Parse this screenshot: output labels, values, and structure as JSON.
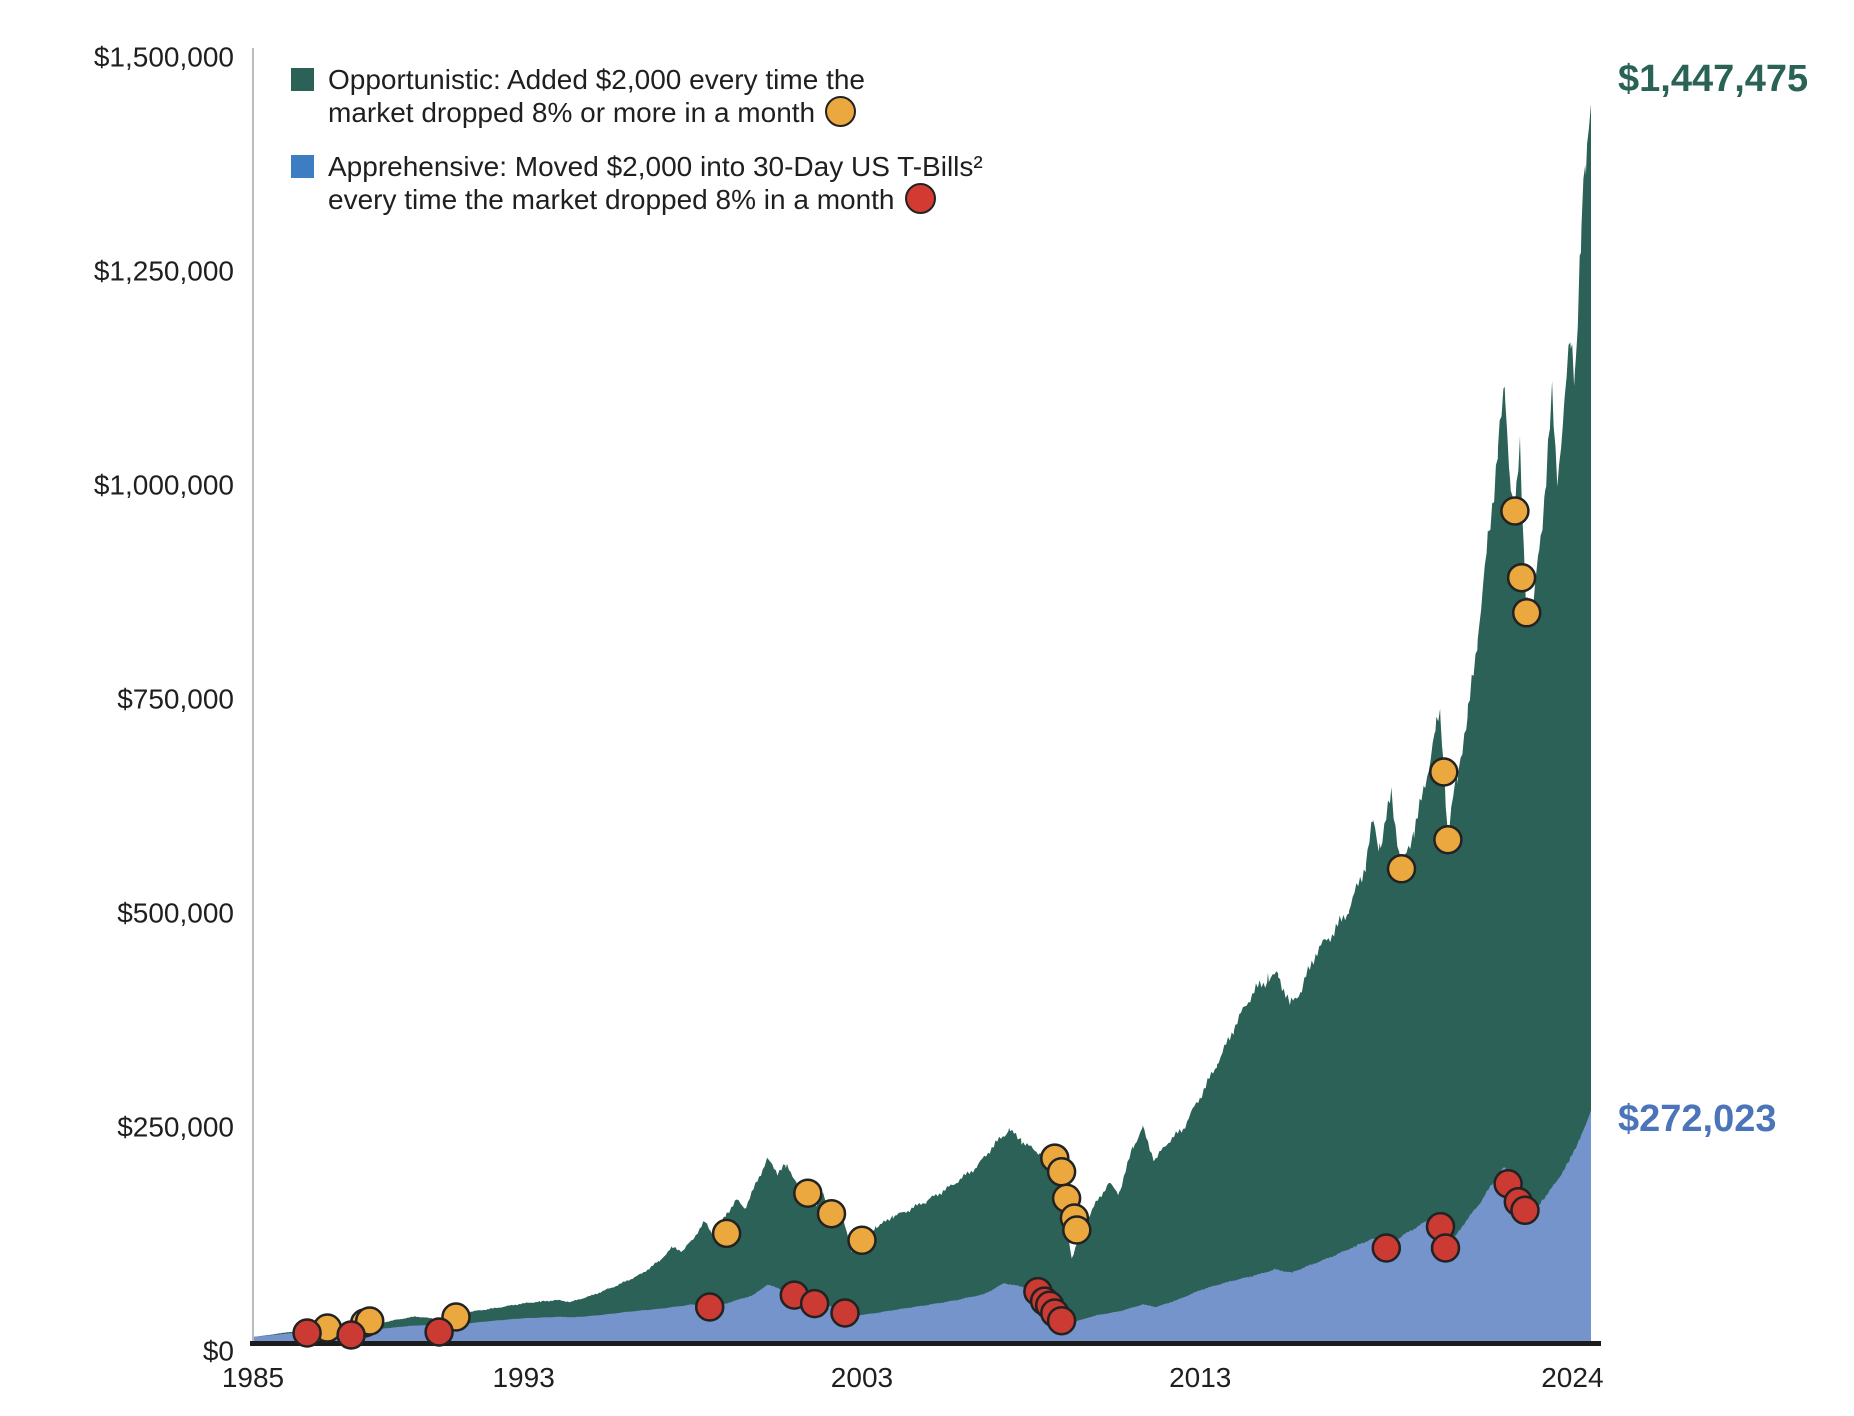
{
  "chart_data": {
    "type": "area",
    "title": "",
    "x_axis": {
      "labels": [
        "1985",
        "1993",
        "2003",
        "2013",
        "2024"
      ],
      "values": [
        1985,
        1993,
        2003,
        2013,
        2024
      ],
      "range": [
        1985,
        2024.55
      ]
    },
    "y_axis": {
      "labels": [
        "$1,500,000",
        "$1,250,000",
        "$1,000,000",
        "$750,000",
        "$500,000",
        "$250,000",
        "$0"
      ],
      "values": [
        1500000,
        1250000,
        1000000,
        750000,
        500000,
        250000,
        0
      ],
      "range": [
        0,
        1500000
      ]
    },
    "grid": "off",
    "legend_position": "top-left",
    "series": [
      {
        "name": "Opportunistic",
        "color": "#2B6156",
        "end_label": "$1,447,475",
        "end_value": 1447475,
        "label_color": "#2A6356",
        "points": [
          [
            1985.0,
            7000
          ],
          [
            1985.5,
            9500
          ],
          [
            1986.0,
            12500
          ],
          [
            1986.5,
            14500
          ],
          [
            1987.0,
            16500
          ],
          [
            1987.4,
            19000
          ],
          [
            1987.75,
            25000
          ],
          [
            1987.95,
            16500
          ],
          [
            1988.3,
            20000
          ],
          [
            1988.8,
            23500
          ],
          [
            1989.3,
            27500
          ],
          [
            1989.8,
            31000
          ],
          [
            1990.2,
            29500
          ],
          [
            1990.55,
            26500
          ],
          [
            1991.0,
            33000
          ],
          [
            1991.5,
            37000
          ],
          [
            1992.0,
            40000
          ],
          [
            1992.5,
            43000
          ],
          [
            1993.0,
            46000
          ],
          [
            1993.5,
            48500
          ],
          [
            1994.0,
            50500
          ],
          [
            1994.4,
            48000
          ],
          [
            1995.0,
            55000
          ],
          [
            1995.5,
            63000
          ],
          [
            1996.0,
            72000
          ],
          [
            1996.5,
            81000
          ],
          [
            1997.0,
            95000
          ],
          [
            1997.4,
            112000
          ],
          [
            1997.7,
            108000
          ],
          [
            1998.0,
            122000
          ],
          [
            1998.35,
            142000
          ],
          [
            1998.6,
            126000
          ],
          [
            1999.0,
            150000
          ],
          [
            1999.3,
            167000
          ],
          [
            1999.55,
            158000
          ],
          [
            1999.9,
            190000
          ],
          [
            2000.2,
            215000
          ],
          [
            2000.5,
            199000
          ],
          [
            2000.75,
            207000
          ],
          [
            2001.1,
            186000
          ],
          [
            2001.4,
            172000
          ],
          [
            2001.65,
            160000
          ],
          [
            2001.85,
            176000
          ],
          [
            2002.1,
            150000
          ],
          [
            2002.35,
            161000
          ],
          [
            2002.7,
            105000
          ],
          [
            2003.0,
            118000
          ],
          [
            2003.4,
            135000
          ],
          [
            2003.9,
            148000
          ],
          [
            2004.4,
            155000
          ],
          [
            2004.9,
            165000
          ],
          [
            2005.4,
            178000
          ],
          [
            2005.9,
            192000
          ],
          [
            2006.4,
            205000
          ],
          [
            2006.9,
            230000
          ],
          [
            2007.35,
            250000
          ],
          [
            2007.7,
            238000
          ],
          [
            2008.0,
            228000
          ],
          [
            2008.4,
            218000
          ],
          [
            2008.7,
            205000
          ],
          [
            2008.95,
            168000
          ],
          [
            2009.2,
            99000
          ],
          [
            2009.5,
            132000
          ],
          [
            2009.9,
            163000
          ],
          [
            2010.3,
            186000
          ],
          [
            2010.6,
            173000
          ],
          [
            2011.0,
            228000
          ],
          [
            2011.3,
            252000
          ],
          [
            2011.65,
            214000
          ],
          [
            2012.0,
            233000
          ],
          [
            2012.5,
            249000
          ],
          [
            2013.0,
            288000
          ],
          [
            2013.5,
            328000
          ],
          [
            2014.0,
            368000
          ],
          [
            2014.6,
            410000
          ],
          [
            2015.0,
            424000
          ],
          [
            2015.3,
            433000
          ],
          [
            2015.65,
            397000
          ],
          [
            2016.0,
            413000
          ],
          [
            2016.4,
            452000
          ],
          [
            2016.9,
            478000
          ],
          [
            2017.4,
            510000
          ],
          [
            2017.9,
            560000
          ],
          [
            2018.1,
            608000
          ],
          [
            2018.3,
            572000
          ],
          [
            2018.65,
            638000
          ],
          [
            2018.95,
            554000
          ],
          [
            2019.3,
            600000
          ],
          [
            2019.6,
            645000
          ],
          [
            2019.95,
            715000
          ],
          [
            2020.1,
            730000
          ],
          [
            2020.22,
            660000
          ],
          [
            2020.32,
            588000
          ],
          [
            2020.6,
            665000
          ],
          [
            2020.9,
            730000
          ],
          [
            2021.2,
            830000
          ],
          [
            2021.5,
            935000
          ],
          [
            2021.8,
            1045000
          ],
          [
            2022.0,
            1108000
          ],
          [
            2022.15,
            1010000
          ],
          [
            2022.3,
            965000
          ],
          [
            2022.45,
            1035000
          ],
          [
            2022.6,
            890000
          ],
          [
            2022.8,
            838000
          ],
          [
            2023.0,
            925000
          ],
          [
            2023.2,
            1005000
          ],
          [
            2023.4,
            1108000
          ],
          [
            2023.55,
            1015000
          ],
          [
            2023.75,
            1085000
          ],
          [
            2023.95,
            1175000
          ],
          [
            2024.08,
            1120000
          ],
          [
            2024.25,
            1285000
          ],
          [
            2024.4,
            1380000
          ],
          [
            2024.55,
            1447475
          ]
        ]
      },
      {
        "name": "Apprehensive",
        "color": "#7494CB",
        "end_label": "$272,023",
        "end_value": 272023,
        "label_color": "#4C74B9",
        "points": [
          [
            1985.0,
            7000
          ],
          [
            1985.5,
            9000
          ],
          [
            1986.0,
            11000
          ],
          [
            1986.5,
            13000
          ],
          [
            1987.0,
            14500
          ],
          [
            1987.75,
            17500
          ],
          [
            1987.95,
            13000
          ],
          [
            1988.4,
            15000
          ],
          [
            1989.0,
            17500
          ],
          [
            1989.6,
            20000
          ],
          [
            1990.2,
            21000
          ],
          [
            1990.55,
            18500
          ],
          [
            1991.2,
            22500
          ],
          [
            1992.0,
            25500
          ],
          [
            1993.0,
            29000
          ],
          [
            1994.0,
            30500
          ],
          [
            1994.5,
            30000
          ],
          [
            1995.2,
            32500
          ],
          [
            1996.0,
            36000
          ],
          [
            1997.0,
            40000
          ],
          [
            1998.0,
            45000
          ],
          [
            1998.6,
            41000
          ],
          [
            1999.2,
            49000
          ],
          [
            1999.8,
            56000
          ],
          [
            2000.2,
            68000
          ],
          [
            2000.7,
            62000
          ],
          [
            2001.0,
            57000
          ],
          [
            2001.5,
            48000
          ],
          [
            2002.0,
            44000
          ],
          [
            2002.5,
            36000
          ],
          [
            2002.8,
            32000
          ],
          [
            2003.4,
            35000
          ],
          [
            2004.2,
            40000
          ],
          [
            2005.0,
            45000
          ],
          [
            2005.8,
            50000
          ],
          [
            2006.6,
            57000
          ],
          [
            2007.2,
            70000
          ],
          [
            2007.8,
            65000
          ],
          [
            2008.2,
            61000
          ],
          [
            2008.5,
            51000
          ],
          [
            2008.75,
            40000
          ],
          [
            2009.0,
            28000
          ],
          [
            2009.3,
            25000
          ],
          [
            2009.9,
            32000
          ],
          [
            2010.6,
            37000
          ],
          [
            2011.3,
            45000
          ],
          [
            2011.7,
            42000
          ],
          [
            2012.3,
            50000
          ],
          [
            2013.0,
            62000
          ],
          [
            2013.8,
            71000
          ],
          [
            2014.6,
            79000
          ],
          [
            2015.2,
            86000
          ],
          [
            2015.7,
            82000
          ],
          [
            2016.3,
            92000
          ],
          [
            2017.0,
            103000
          ],
          [
            2017.6,
            113000
          ],
          [
            2018.1,
            122000
          ],
          [
            2018.45,
            112000
          ],
          [
            2019.0,
            126000
          ],
          [
            2019.7,
            142000
          ],
          [
            2020.1,
            138000
          ],
          [
            2020.28,
            110000
          ],
          [
            2020.8,
            140000
          ],
          [
            2021.3,
            165000
          ],
          [
            2021.8,
            196000
          ],
          [
            2022.0,
            206000
          ],
          [
            2022.2,
            184000
          ],
          [
            2022.45,
            168000
          ],
          [
            2022.7,
            153000
          ],
          [
            2022.85,
            150000
          ],
          [
            2023.1,
            166000
          ],
          [
            2023.5,
            186000
          ],
          [
            2023.9,
            212000
          ],
          [
            2024.2,
            238000
          ],
          [
            2024.4,
            255000
          ],
          [
            2024.55,
            272023
          ]
        ]
      }
    ],
    "markers": [
      {
        "name": "opportunistic-buy-events",
        "color": "#EAA83E",
        "points": [
          [
            1987.2,
            17500
          ],
          [
            1988.3,
            23400
          ],
          [
            1988.45,
            25700
          ],
          [
            1991.0,
            30400
          ],
          [
            1999.0,
            128000
          ],
          [
            2001.4,
            175000
          ],
          [
            2002.1,
            151000
          ],
          [
            2003.0,
            120000
          ],
          [
            2008.7,
            216000
          ],
          [
            2008.9,
            200000
          ],
          [
            2009.05,
            169000
          ],
          [
            2009.28,
            146000
          ],
          [
            2009.35,
            132000
          ],
          [
            2018.95,
            554000
          ],
          [
            2020.2,
            667000
          ],
          [
            2020.32,
            588000
          ],
          [
            2022.3,
            972000
          ],
          [
            2022.5,
            894000
          ],
          [
            2022.65,
            853000
          ]
        ]
      },
      {
        "name": "apprehensive-move-events",
        "color": "#CB3A33",
        "points": [
          [
            1986.6,
            11700
          ],
          [
            1987.9,
            9300
          ],
          [
            1990.5,
            12900
          ],
          [
            1998.5,
            42000
          ],
          [
            2001.0,
            56000
          ],
          [
            2001.6,
            46000
          ],
          [
            2002.5,
            35000
          ],
          [
            2008.2,
            60000
          ],
          [
            2008.4,
            49000
          ],
          [
            2008.55,
            44000
          ],
          [
            2008.7,
            35000
          ],
          [
            2008.9,
            26000
          ],
          [
            2018.5,
            111000
          ],
          [
            2020.1,
            136000
          ],
          [
            2020.25,
            111000
          ],
          [
            2022.1,
            186000
          ],
          [
            2022.4,
            165000
          ],
          [
            2022.6,
            155000
          ]
        ]
      }
    ],
    "legend": [
      {
        "swatch_color": "#2B6156",
        "dot_color": "#EAA83E",
        "lines": [
          "Opportunistic: Added $2,000 every time the",
          "market dropped 8% or more in a month"
        ]
      },
      {
        "swatch_color": "#3C7EC1",
        "dot_color": "#D23A32",
        "lines": [
          "Apprehensive: Moved $2,000 into 30-Day US T-Bills²",
          "every time the market dropped 8% in a month"
        ]
      }
    ]
  }
}
